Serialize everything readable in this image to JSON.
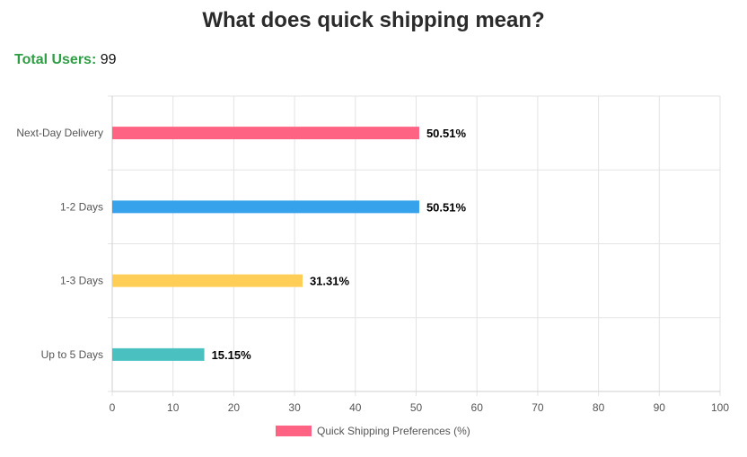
{
  "page": {
    "title": "What does quick shipping mean?",
    "total_users_label": "Total Users:",
    "total_users_value": "99"
  },
  "chart_data": {
    "type": "bar",
    "orientation": "horizontal",
    "categories": [
      "Next-Day Delivery",
      "1-2 Days",
      "1-3 Days",
      "Up to 5 Days"
    ],
    "series": [
      {
        "name": "Quick Shipping Preferences (%)",
        "values": [
          50.51,
          50.51,
          31.31,
          15.15
        ],
        "data_labels": [
          "50.51%",
          "50.51%",
          "31.31%",
          "15.15%"
        ],
        "colors": [
          "#ff6384",
          "#36a2eb",
          "#ffce56",
          "#4bc0c0"
        ]
      }
    ],
    "x_ticks": [
      "0",
      "10",
      "20",
      "30",
      "40",
      "50",
      "60",
      "70",
      "80",
      "90",
      "100"
    ],
    "xlim": [
      0,
      100
    ],
    "grid": true,
    "legend_position": "bottom",
    "legend_color": "#ff6384"
  }
}
